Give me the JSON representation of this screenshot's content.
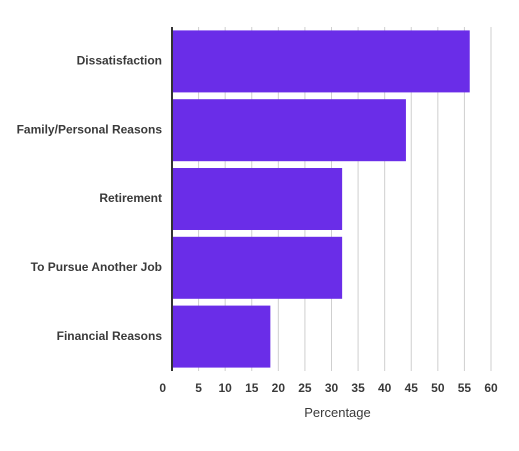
{
  "chart_data": {
    "type": "bar",
    "orientation": "horizontal",
    "title": "",
    "xlabel": "Percentage",
    "ylabel": "",
    "categories": [
      "Dissatisfaction",
      "Family/Personal Reasons",
      "Retirement",
      "To Pursue Another Job",
      "Financial Reasons"
    ],
    "values": [
      56,
      44,
      32,
      32,
      18.5
    ],
    "xlim": [
      0,
      60
    ],
    "xticks": [
      0,
      5,
      10,
      15,
      20,
      25,
      30,
      35,
      40,
      45,
      50,
      55,
      60
    ],
    "grid": true,
    "legend": "none",
    "colors": {
      "bar": "#6a2de8",
      "grid": "#cfcfcf",
      "axis": "#333333"
    }
  }
}
